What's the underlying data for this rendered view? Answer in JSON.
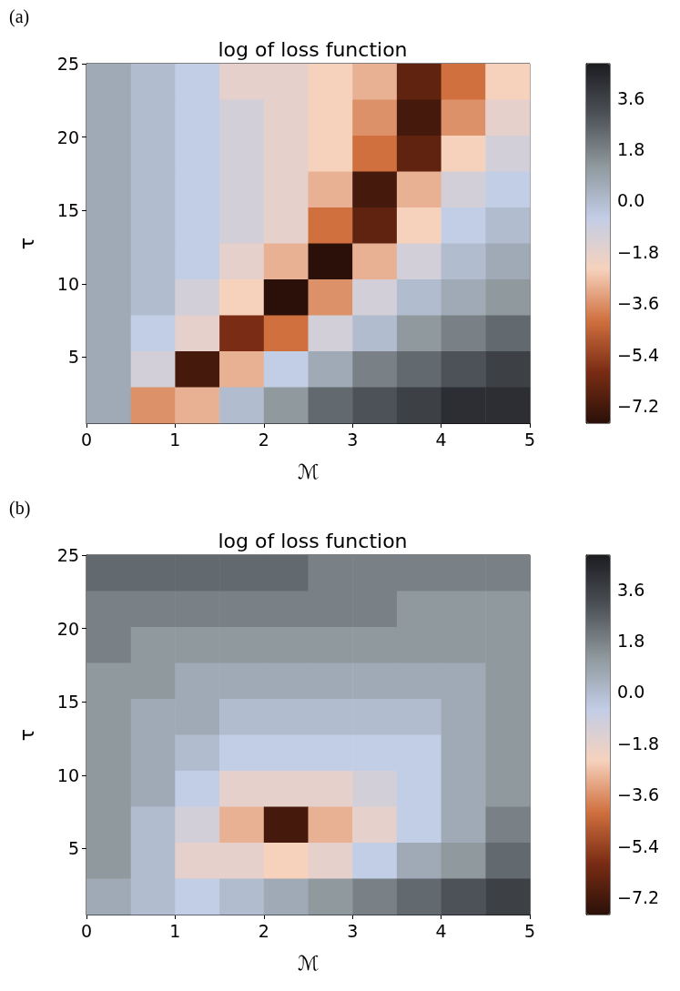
{
  "chart_data": [
    {
      "type": "heatmap",
      "title": "log of loss function",
      "xlabel": "ℳ",
      "ylabel": "τ",
      "annotations": [
        "(a)"
      ],
      "xlim": [
        0,
        5
      ],
      "xticks": [
        0,
        1,
        2,
        3,
        4,
        5
      ],
      "ylim": [
        0.5,
        25
      ],
      "yticks": [
        5,
        10,
        15,
        20,
        25
      ],
      "clim": [
        -7.8,
        4.8
      ],
      "cticks": [
        -7.2,
        -5.4,
        -3.6,
        -1.8,
        {
          "value": 0,
          "label": "0.0"
        },
        1.8,
        3.6
      ],
      "cells": [
        [
          0.6,
          0.0,
          -0.6,
          -1.8,
          -1.8,
          -2.4,
          -3.0,
          -6.6,
          -4.2,
          -2.4
        ],
        [
          0.6,
          0.0,
          -0.6,
          -1.2,
          -1.8,
          -2.4,
          -3.6,
          -7.2,
          -3.6,
          -1.8
        ],
        [
          0.6,
          0.0,
          -0.6,
          -1.2,
          -1.8,
          -2.4,
          -4.2,
          -6.6,
          -2.4,
          -1.2
        ],
        [
          0.6,
          0.0,
          -0.6,
          -1.2,
          -1.8,
          -3.0,
          -7.2,
          -3.0,
          -1.2,
          -0.6
        ],
        [
          0.6,
          0.0,
          -0.6,
          -1.2,
          -1.8,
          -4.2,
          -6.6,
          -2.4,
          -0.6,
          0.0
        ],
        [
          0.6,
          0.0,
          -0.6,
          -1.8,
          -3.0,
          -7.8,
          -3.0,
          -1.2,
          0.0,
          0.6
        ],
        [
          0.6,
          0.0,
          -1.2,
          -2.4,
          -7.8,
          -3.6,
          -1.2,
          0.0,
          0.6,
          1.2
        ],
        [
          0.6,
          -0.6,
          -1.8,
          -6.0,
          -4.2,
          -1.2,
          0.0,
          1.2,
          1.8,
          2.4
        ],
        [
          0.6,
          -1.2,
          -7.2,
          -3.0,
          -0.6,
          0.6,
          1.8,
          2.4,
          3.0,
          3.6
        ],
        [
          0.6,
          -3.6,
          -3.0,
          0.0,
          1.2,
          2.4,
          3.0,
          3.6,
          4.2,
          4.2
        ]
      ]
    },
    {
      "type": "heatmap",
      "title": "log of loss function",
      "xlabel": "ℳ",
      "ylabel": "τ",
      "annotations": [
        "(b)"
      ],
      "xlim": [
        0,
        5
      ],
      "xticks": [
        0,
        1,
        2,
        3,
        4,
        5
      ],
      "ylim": [
        0.5,
        25
      ],
      "yticks": [
        5,
        10,
        15,
        20,
        25
      ],
      "clim": [
        -7.8,
        4.8
      ],
      "cticks": [
        -7.2,
        -5.4,
        -3.6,
        -1.8,
        {
          "value": 0,
          "label": "0.0"
        },
        1.8,
        3.6
      ],
      "cells": [
        [
          2.4,
          2.4,
          2.4,
          2.4,
          2.4,
          1.8,
          1.8,
          1.8,
          1.8,
          1.8
        ],
        [
          1.8,
          1.8,
          1.8,
          1.8,
          1.8,
          1.8,
          1.8,
          1.2,
          1.2,
          1.2
        ],
        [
          1.8,
          1.2,
          1.2,
          1.2,
          1.2,
          1.2,
          1.2,
          1.2,
          1.2,
          1.2
        ],
        [
          1.2,
          1.2,
          0.6,
          0.6,
          0.6,
          0.6,
          0.6,
          0.6,
          0.6,
          1.2
        ],
        [
          1.2,
          0.6,
          0.6,
          0.0,
          0.0,
          0.0,
          0.0,
          0.0,
          0.6,
          1.2
        ],
        [
          1.2,
          0.6,
          0.0,
          -0.6,
          -0.6,
          -0.6,
          -0.6,
          -0.6,
          0.6,
          1.2
        ],
        [
          1.2,
          0.6,
          -0.6,
          -1.8,
          -1.8,
          -1.8,
          -1.2,
          -0.6,
          0.6,
          1.2
        ],
        [
          1.2,
          0.0,
          -1.2,
          -3.0,
          -7.2,
          -3.0,
          -1.8,
          -0.6,
          0.6,
          1.8
        ],
        [
          1.2,
          0.0,
          -1.8,
          -1.8,
          -2.4,
          -1.8,
          -0.6,
          0.6,
          1.2,
          2.4
        ],
        [
          0.6,
          0.0,
          -0.6,
          0.0,
          0.6,
          1.2,
          1.8,
          2.4,
          3.0,
          3.6
        ]
      ]
    }
  ]
}
